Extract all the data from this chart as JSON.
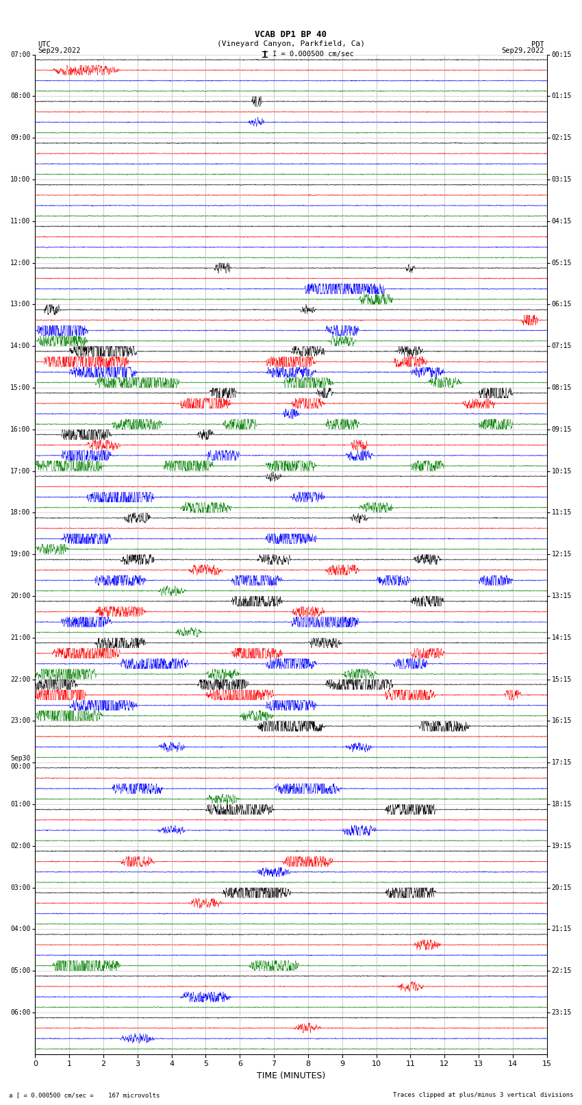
{
  "title_line1": "VCAB DP1 BP 40",
  "title_line2": "(Vineyard Canyon, Parkfield, Ca)",
  "scale_text": "I = 0.000500 cm/sec",
  "left_label": "UTC",
  "left_date": "Sep29,2022",
  "right_label": "PDT",
  "right_date": "Sep29,2022",
  "bottom_label_left": "a [ = 0.000500 cm/sec =    167 microvolts",
  "bottom_label_right": "Traces clipped at plus/minus 3 vertical divisions",
  "xlabel": "TIME (MINUTES)",
  "xlim": [
    0,
    15
  ],
  "xticks": [
    0,
    1,
    2,
    3,
    4,
    5,
    6,
    7,
    8,
    9,
    10,
    11,
    12,
    13,
    14,
    15
  ],
  "utc_times": [
    "07:00",
    "08:00",
    "09:00",
    "10:00",
    "11:00",
    "12:00",
    "13:00",
    "14:00",
    "15:00",
    "16:00",
    "17:00",
    "18:00",
    "19:00",
    "20:00",
    "21:00",
    "22:00",
    "23:00",
    "Sep30\n00:00",
    "01:00",
    "02:00",
    "03:00",
    "04:00",
    "05:00",
    "06:00"
  ],
  "pdt_times": [
    "00:15",
    "01:15",
    "02:15",
    "03:15",
    "04:15",
    "05:15",
    "06:15",
    "07:15",
    "08:15",
    "09:15",
    "10:15",
    "11:15",
    "12:15",
    "13:15",
    "14:15",
    "15:15",
    "16:15",
    "17:15",
    "18:15",
    "19:15",
    "20:15",
    "21:15",
    "22:15",
    "23:15"
  ],
  "colors": [
    "black",
    "red",
    "blue",
    "green"
  ],
  "figsize": [
    8.5,
    16.13
  ],
  "dpi": 100,
  "bg_color": "white",
  "vgrid_color": "#999999",
  "hgrid_color": "#bbbbbb"
}
